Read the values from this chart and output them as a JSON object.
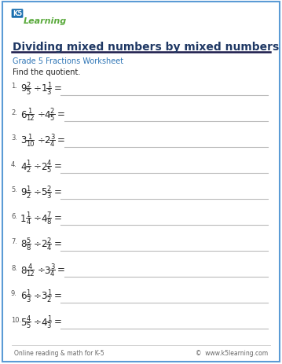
{
  "title": "Dividing mixed numbers by mixed numbers",
  "subtitle": "Grade 5 Fractions Worksheet",
  "instruction": "Find the quotient.",
  "footer_left": "Online reading & math for K-5",
  "footer_right": "©  www.k5learning.com",
  "border_color": "#5b9bd5",
  "title_color": "#1f3864",
  "subtitle_color": "#2e75b6",
  "text_color": "#222222",
  "num_color": "#555555",
  "line_color": "#bbbbbb",
  "bg_color": "#ffffff",
  "figw": 3.59,
  "figh": 4.64,
  "dpi": 100,
  "problems": [
    {
      "whole1": "9",
      "num1": "2",
      "den1": "5",
      "whole2": "1",
      "num2": "1",
      "den2": "3"
    },
    {
      "whole1": "6",
      "num1": "1",
      "den1": "12",
      "whole2": "4",
      "num2": "2",
      "den2": "5"
    },
    {
      "whole1": "3",
      "num1": "1",
      "den1": "10",
      "whole2": "2",
      "num2": "3",
      "den2": "4"
    },
    {
      "whole1": "4",
      "num1": "1",
      "den1": "2",
      "whole2": "2",
      "num2": "4",
      "den2": "5"
    },
    {
      "whole1": "9",
      "num1": "1",
      "den1": "2",
      "whole2": "5",
      "num2": "2",
      "den2": "3"
    },
    {
      "whole1": "1",
      "num1": "1",
      "den1": "4",
      "whole2": "4",
      "num2": "7",
      "den2": "8"
    },
    {
      "whole1": "8",
      "num1": "5",
      "den1": "8",
      "whole2": "2",
      "num2": "2",
      "den2": "4"
    },
    {
      "whole1": "8",
      "num1": "4",
      "den1": "12",
      "whole2": "3",
      "num2": "3",
      "den2": "4"
    },
    {
      "whole1": "6",
      "num1": "1",
      "den1": "3",
      "whole2": "3",
      "num2": "1",
      "den2": "2"
    },
    {
      "whole1": "5",
      "num1": "4",
      "den1": "5",
      "whole2": "4",
      "num2": "1",
      "den2": "3"
    }
  ]
}
